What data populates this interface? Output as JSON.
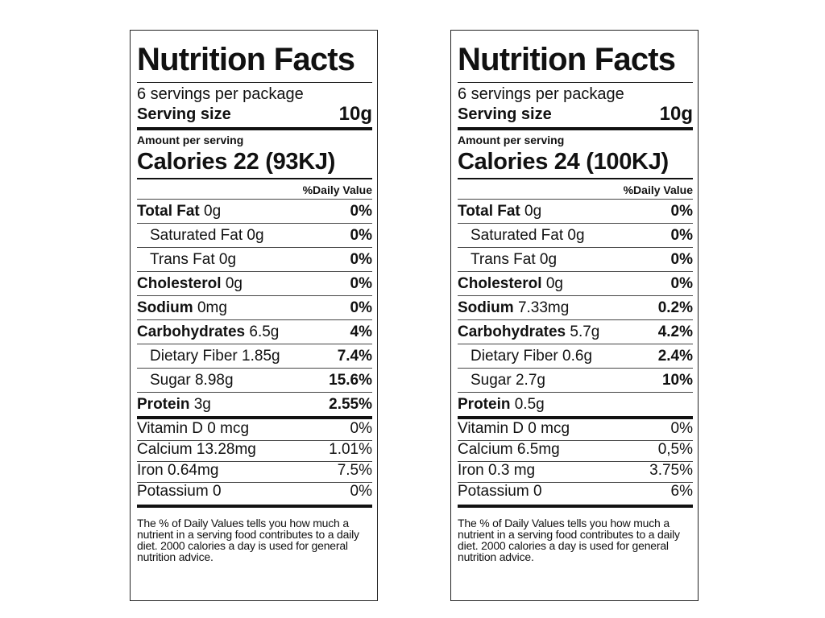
{
  "labels": [
    {
      "title": "Nutrition Facts",
      "servings": "6 servings per package",
      "serving_size_label": "Serving size",
      "serving_size_value": "10g",
      "amount_label": "Amount per serving",
      "calories": "Calories 22 (93KJ)",
      "dv_header": "%Daily Value",
      "nutrients": [
        {
          "name": "Total Fat",
          "amount": "0g",
          "dv": "0%",
          "bold": true,
          "indent": false
        },
        {
          "name": "Saturated Fat",
          "amount": "0g",
          "dv": "0%",
          "bold": false,
          "indent": true
        },
        {
          "name": "Trans Fat",
          "amount": "0g",
          "dv": "0%",
          "bold": false,
          "indent": true
        },
        {
          "name": "Cholesterol",
          "amount": "0g",
          "dv": "0%",
          "bold": true,
          "indent": false
        },
        {
          "name": "Sodium",
          "amount": "0mg",
          "dv": "0%",
          "bold": true,
          "indent": false
        },
        {
          "name": "Carbohydrates",
          "amount": "6.5g",
          "dv": "4%",
          "bold": true,
          "indent": false
        },
        {
          "name": "Dietary Fiber",
          "amount": "1.85g",
          "dv": "7.4%",
          "bold": false,
          "indent": true
        },
        {
          "name": "Sugar",
          "amount": " 8.98g",
          "dv": "15.6%",
          "bold": false,
          "indent": true
        },
        {
          "name": "Protein",
          "amount": "3g",
          "dv": "2.55%",
          "bold": true,
          "indent": false
        }
      ],
      "vitamins": [
        {
          "name": "Vitamin D 0 mcg",
          "dv": "0%"
        },
        {
          "name": "Calcium 13.28mg",
          "dv": "1.01%"
        },
        {
          "name": "Iron 0.64mg",
          "dv": "7.5%"
        },
        {
          "name": "Potassium 0",
          "dv": "0%"
        }
      ],
      "footnote": "The % of Daily Values tells you how much a nutrient in a serving food contributes to a daily diet. 2000 calories a day is used for general nutrition advice."
    },
    {
      "title": "Nutrition Facts",
      "servings": "6 servings per package",
      "serving_size_label": "Serving size",
      "serving_size_value": "10g",
      "amount_label": "Amount per serving",
      "calories": "Calories 24 (100KJ)",
      "dv_header": "%Daily Value",
      "nutrients": [
        {
          "name": "Total Fat",
          "amount": "0g",
          "dv": "0%",
          "bold": true,
          "indent": false
        },
        {
          "name": "Saturated Fat",
          "amount": "0g",
          "dv": "0%",
          "bold": false,
          "indent": true
        },
        {
          "name": "Trans Fat",
          "amount": "0g",
          "dv": "0%",
          "bold": false,
          "indent": true
        },
        {
          "name": "Cholesterol",
          "amount": "0g",
          "dv": "0%",
          "bold": true,
          "indent": false
        },
        {
          "name": "Sodium",
          "amount": "7.33mg",
          "dv": "0.2%",
          "bold": true,
          "indent": false
        },
        {
          "name": "Carbohydrates",
          "amount": "5.7g",
          "dv": "4.2%",
          "bold": true,
          "indent": false
        },
        {
          "name": "Dietary Fiber",
          "amount": "0.6g",
          "dv": "2.4%",
          "bold": false,
          "indent": true
        },
        {
          "name": "Sugar",
          "amount": "2.7g",
          "dv": "10%",
          "bold": false,
          "indent": true
        },
        {
          "name": "Protein",
          "amount": " 0.5g",
          "dv": "",
          "bold": true,
          "indent": false
        }
      ],
      "vitamins": [
        {
          "name": "Vitamin D 0 mcg",
          "dv": "0%"
        },
        {
          "name": "Calcium 6.5mg",
          "dv": "0,5%"
        },
        {
          "name": "Iron 0.3 mg",
          "dv": "3.75%"
        },
        {
          "name": "Potassium 0",
          "dv": "6%"
        }
      ],
      "footnote": "The % of Daily Values tells you how much a nutrient in a serving food contributes to a daily diet. 2000 calories a day is used for general nutrition advice."
    }
  ]
}
